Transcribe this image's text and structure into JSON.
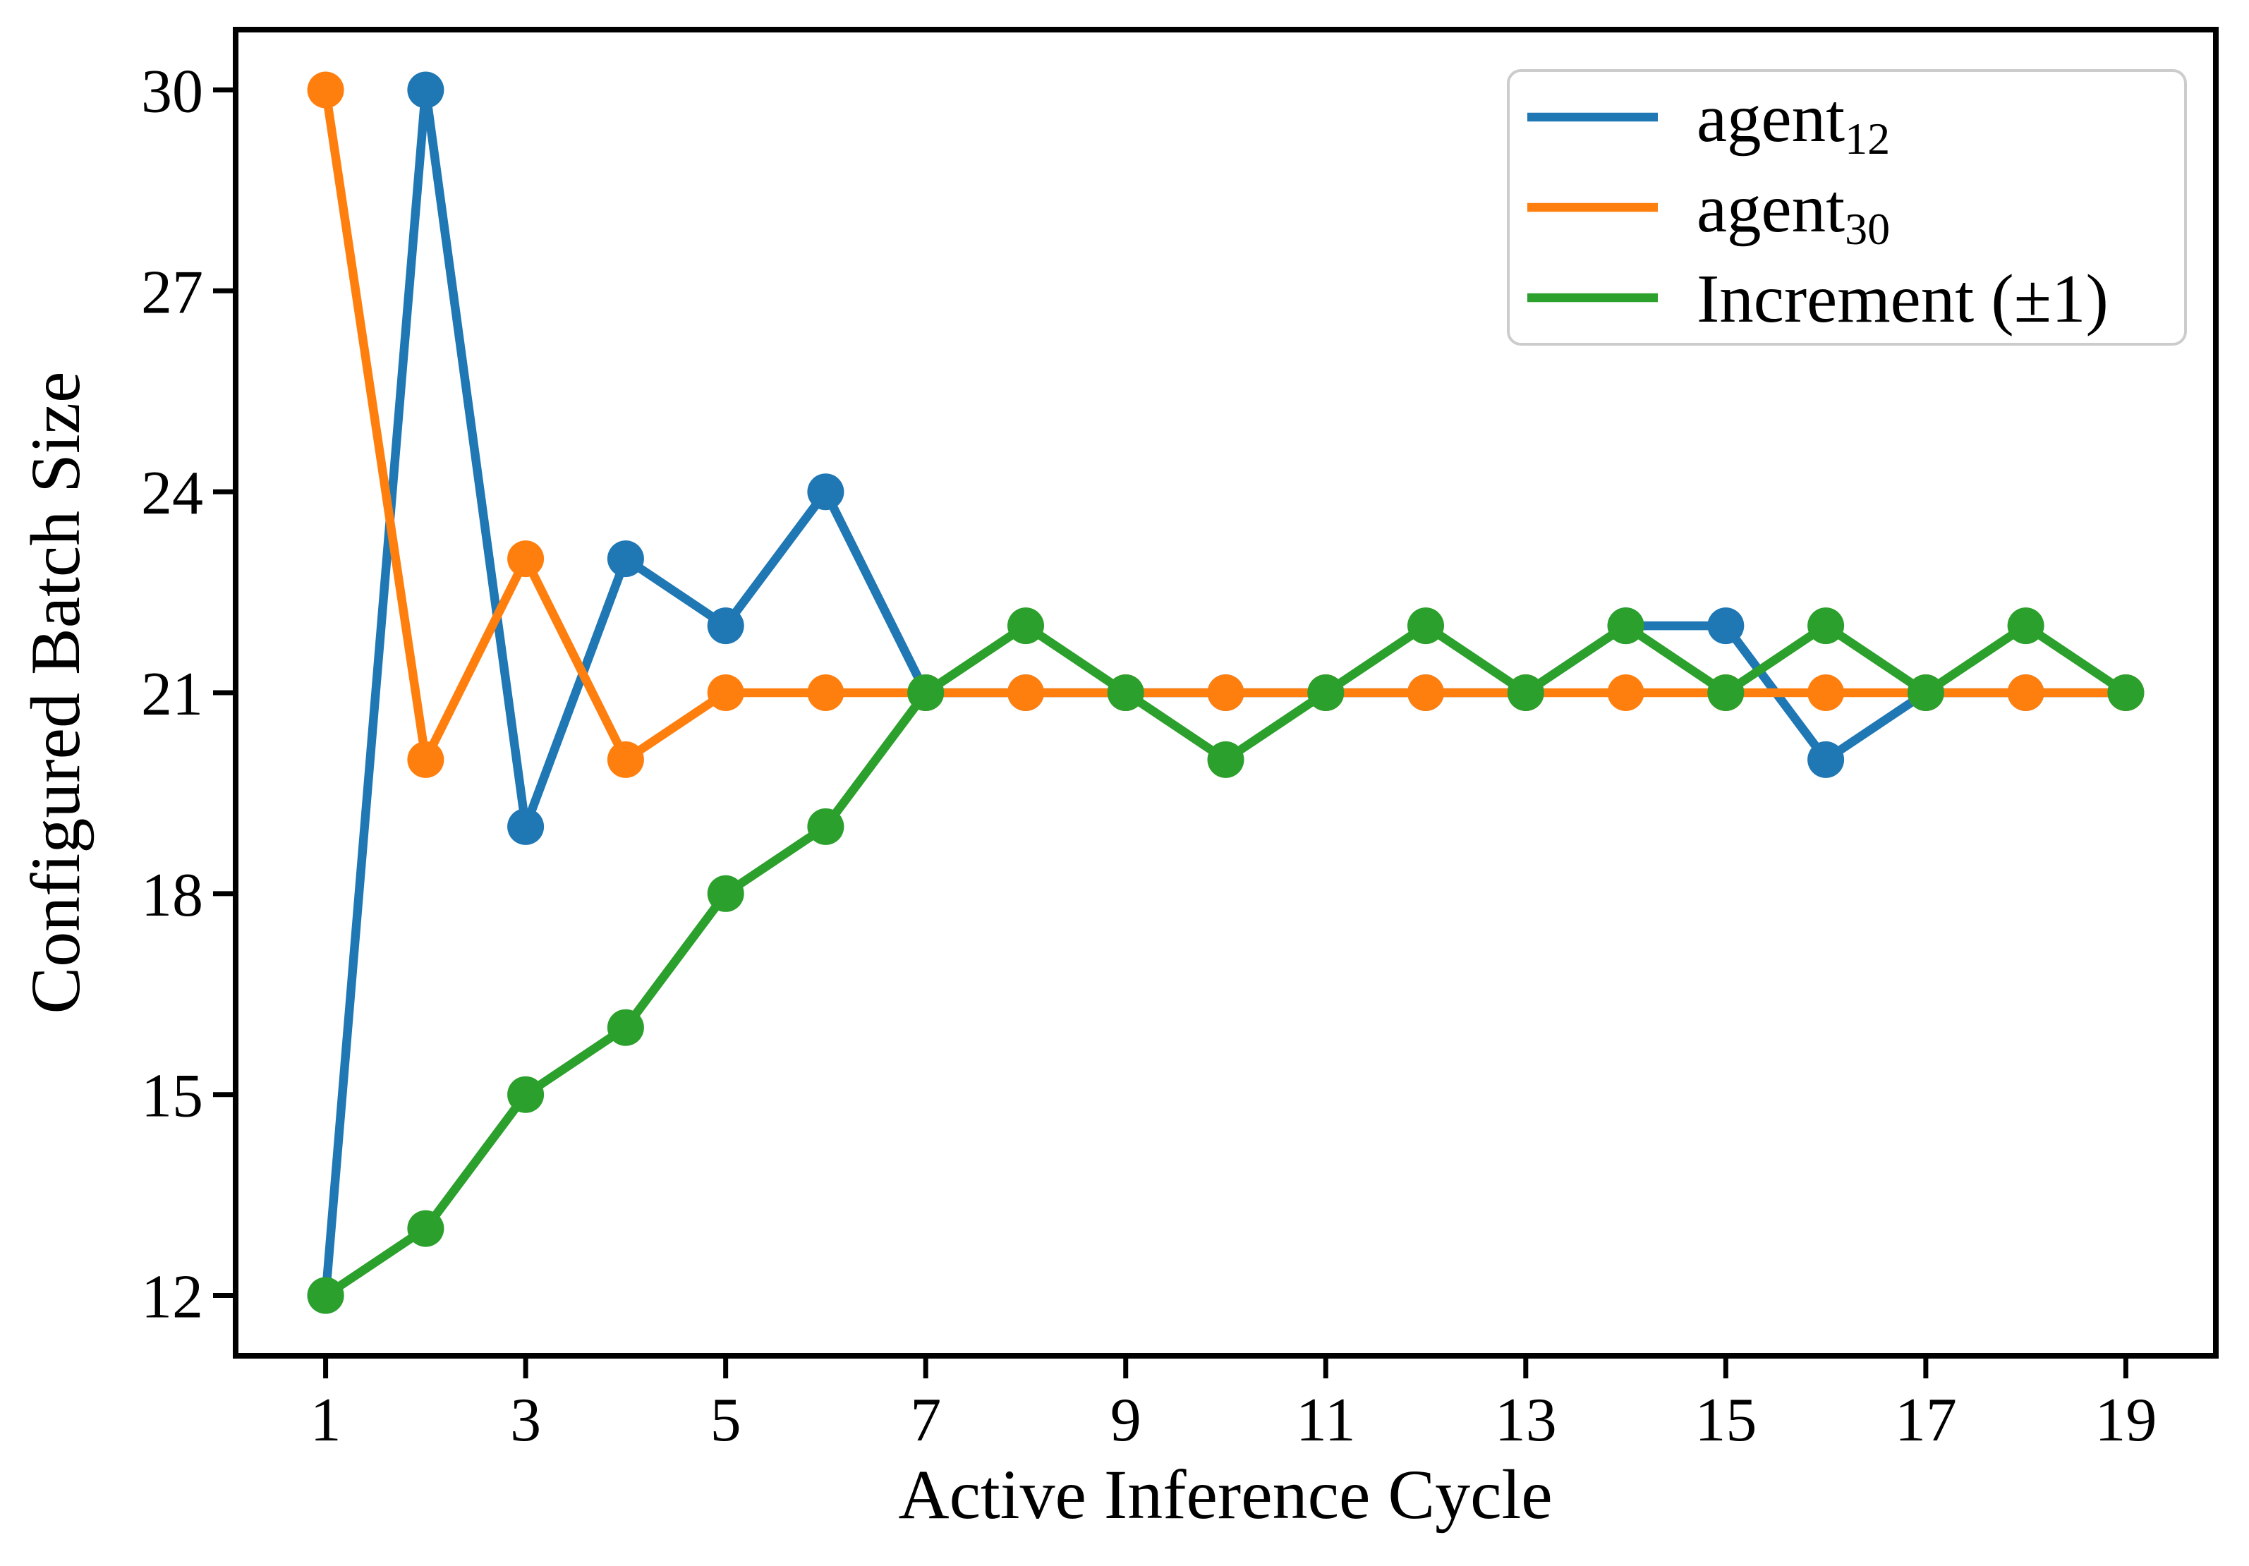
{
  "figure": {
    "background": "#ffffff",
    "spine_color": "#000000",
    "legend": {
      "frame_stroke": "#cccccc",
      "frame_fill": "#ffffff",
      "entries": [
        {
          "display": "agent₁₂",
          "base": "agent",
          "sub": "12"
        },
        {
          "display": "agent₃₀",
          "base": "agent",
          "sub": "30"
        },
        {
          "display": "Increment (±1)",
          "base": "Increment (±1)",
          "sub": ""
        }
      ]
    }
  },
  "chart_data": {
    "type": "line",
    "title": "",
    "xlabel": "Active Inference Cycle",
    "ylabel": "Configured Batch Size",
    "x": [
      1,
      2,
      3,
      4,
      5,
      6,
      7,
      8,
      9,
      10,
      11,
      12,
      13,
      14,
      15,
      16,
      17,
      18,
      19
    ],
    "series": [
      {
        "name": "agent₁₂",
        "color": "#1f77b4",
        "values": [
          12,
          30,
          19,
          23,
          22,
          24,
          21,
          21,
          21,
          21,
          21,
          21,
          21,
          22,
          22,
          20,
          21,
          21,
          21
        ]
      },
      {
        "name": "agent₃₀",
        "color": "#ff7f0e",
        "values": [
          30,
          20,
          23,
          20,
          21,
          21,
          21,
          21,
          21,
          21,
          21,
          21,
          21,
          21,
          21,
          21,
          21,
          21,
          21
        ]
      },
      {
        "name": "Increment (±1)",
        "color": "#2ca02c",
        "values": [
          12,
          13,
          15,
          16,
          18,
          19,
          21,
          22,
          21,
          20,
          21,
          22,
          21,
          22,
          21,
          22,
          21,
          22,
          21
        ]
      }
    ],
    "xticks": [
      1,
      3,
      5,
      7,
      9,
      11,
      13,
      15,
      17,
      19
    ],
    "yticks": [
      12,
      15,
      18,
      21,
      24,
      27,
      30
    ],
    "xlim": [
      0.1,
      19.9
    ],
    "ylim": [
      11.1,
      30.9
    ],
    "grid": false,
    "marker": "o",
    "legend_position": "upper right"
  }
}
